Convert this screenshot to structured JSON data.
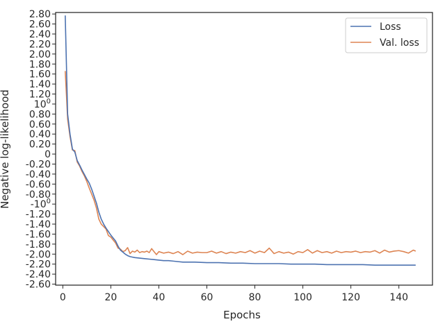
{
  "chart_data": {
    "type": "line",
    "xlabel": "Epochs",
    "ylabel": "Negative log-likelihood",
    "xlim": [
      -3,
      154
    ],
    "ylim": [
      -2.62,
      2.83
    ],
    "y_scale": "symlog",
    "grid": false,
    "legend_placement": "top-right",
    "x_ticks": [
      0,
      20,
      40,
      60,
      80,
      100,
      120,
      140
    ],
    "x_tick_labels": [
      "0",
      "20",
      "40",
      "60",
      "80",
      "100",
      "120",
      "140"
    ],
    "y_ticks": [
      {
        "value": 2.8,
        "label": "2.80"
      },
      {
        "value": 2.6,
        "label": "2.60"
      },
      {
        "value": 2.4,
        "label": "2.40"
      },
      {
        "value": 2.2,
        "label": "2.20"
      },
      {
        "value": 2.0,
        "label": "2.00"
      },
      {
        "value": 1.8,
        "label": "1.80"
      },
      {
        "value": 1.6,
        "label": "1.60"
      },
      {
        "value": 1.4,
        "label": "1.40"
      },
      {
        "value": 1.2,
        "label": "1.20"
      },
      {
        "value": 1.0,
        "label": "10",
        "sup": "0"
      },
      {
        "value": 0.8,
        "label": "0.80"
      },
      {
        "value": 0.6,
        "label": "0.60"
      },
      {
        "value": 0.4,
        "label": "0.40"
      },
      {
        "value": 0.2,
        "label": "0.20"
      },
      {
        "value": 0.0,
        "label": "0"
      },
      {
        "value": -0.2,
        "label": "-0.20"
      },
      {
        "value": -0.4,
        "label": "-0.40"
      },
      {
        "value": -0.6,
        "label": "-0.60"
      },
      {
        "value": -0.8,
        "label": "-0.80"
      },
      {
        "value": -1.0,
        "label": "-10",
        "sup": "0"
      },
      {
        "value": -1.2,
        "label": "-1.20"
      },
      {
        "value": -1.4,
        "label": "-1.40"
      },
      {
        "value": -1.6,
        "label": "-1.60"
      },
      {
        "value": -1.8,
        "label": "-1.80"
      },
      {
        "value": -2.0,
        "label": "-2.00"
      },
      {
        "value": -2.2,
        "label": "-2.20"
      },
      {
        "value": -2.4,
        "label": "-2.40"
      },
      {
        "value": -2.6,
        "label": "-2.60"
      }
    ],
    "series": [
      {
        "name": "Loss",
        "color": "#4c72b0",
        "x": [
          1,
          2,
          3,
          4,
          5,
          6,
          7,
          8,
          9,
          10,
          11,
          12,
          13,
          14,
          15,
          16,
          17,
          18,
          19,
          20,
          21,
          22,
          23,
          24,
          25,
          26,
          27,
          28,
          29,
          30,
          32,
          34,
          36,
          38,
          40,
          42,
          44,
          46,
          48,
          50,
          55,
          60,
          65,
          70,
          75,
          80,
          85,
          90,
          95,
          100,
          105,
          110,
          115,
          120,
          125,
          130,
          135,
          140,
          145,
          147
        ],
        "y": [
          2.77,
          0.8,
          0.4,
          0.1,
          0.04,
          -0.13,
          -0.22,
          -0.32,
          -0.41,
          -0.5,
          -0.58,
          -0.7,
          -0.84,
          -0.98,
          -1.16,
          -1.3,
          -1.4,
          -1.48,
          -1.55,
          -1.62,
          -1.68,
          -1.74,
          -1.84,
          -1.92,
          -1.96,
          -2.0,
          -2.03,
          -2.05,
          -2.06,
          -2.07,
          -2.08,
          -2.09,
          -2.1,
          -2.11,
          -2.12,
          -2.13,
          -2.13,
          -2.14,
          -2.15,
          -2.16,
          -2.16,
          -2.17,
          -2.17,
          -2.18,
          -2.18,
          -2.19,
          -2.19,
          -2.19,
          -2.2,
          -2.2,
          -2.2,
          -2.21,
          -2.21,
          -2.21,
          -2.21,
          -2.22,
          -2.22,
          -2.22,
          -2.22,
          -2.22
        ]
      },
      {
        "name": "Val. loss",
        "color": "#dd8452",
        "x": [
          1,
          2,
          3,
          4,
          5,
          6,
          7,
          8,
          9,
          10,
          11,
          12,
          13,
          14,
          15,
          16,
          17,
          18,
          19,
          20,
          21,
          22,
          23,
          24,
          25,
          26,
          27,
          28,
          29,
          30,
          31,
          32,
          33,
          34,
          35,
          36,
          37,
          38,
          39,
          40,
          42,
          44,
          46,
          48,
          50,
          52,
          54,
          56,
          58,
          60,
          62,
          64,
          66,
          68,
          70,
          72,
          74,
          76,
          78,
          80,
          82,
          84,
          86,
          88,
          90,
          92,
          94,
          96,
          98,
          100,
          102,
          104,
          106,
          108,
          110,
          112,
          114,
          116,
          118,
          120,
          122,
          124,
          126,
          128,
          130,
          132,
          134,
          136,
          138,
          140,
          142,
          144,
          146,
          147
        ],
        "y": [
          1.66,
          0.7,
          0.35,
          0.08,
          0.07,
          -0.16,
          -0.24,
          -0.35,
          -0.44,
          -0.55,
          -0.68,
          -0.8,
          -0.92,
          -1.08,
          -1.3,
          -1.4,
          -1.45,
          -1.5,
          -1.63,
          -1.66,
          -1.72,
          -1.78,
          -1.88,
          -1.9,
          -1.95,
          -1.93,
          -1.87,
          -1.99,
          -1.94,
          -1.96,
          -1.92,
          -1.97,
          -1.95,
          -1.96,
          -1.94,
          -1.97,
          -1.89,
          -1.95,
          -2.01,
          -1.95,
          -1.98,
          -1.96,
          -1.99,
          -1.95,
          -2.01,
          -1.94,
          -1.98,
          -1.96,
          -1.97,
          -1.97,
          -1.94,
          -1.98,
          -1.95,
          -1.99,
          -1.96,
          -1.98,
          -1.95,
          -1.97,
          -1.93,
          -1.98,
          -1.94,
          -1.97,
          -1.88,
          -1.99,
          -1.95,
          -1.98,
          -1.96,
          -2.0,
          -1.95,
          -1.97,
          -1.91,
          -1.98,
          -1.93,
          -1.97,
          -1.95,
          -1.98,
          -1.94,
          -1.97,
          -1.95,
          -1.96,
          -1.94,
          -1.97,
          -1.95,
          -1.96,
          -1.93,
          -1.98,
          -1.92,
          -1.96,
          -1.94,
          -1.93,
          -1.95,
          -1.98,
          -1.92,
          -1.94
        ]
      }
    ]
  }
}
